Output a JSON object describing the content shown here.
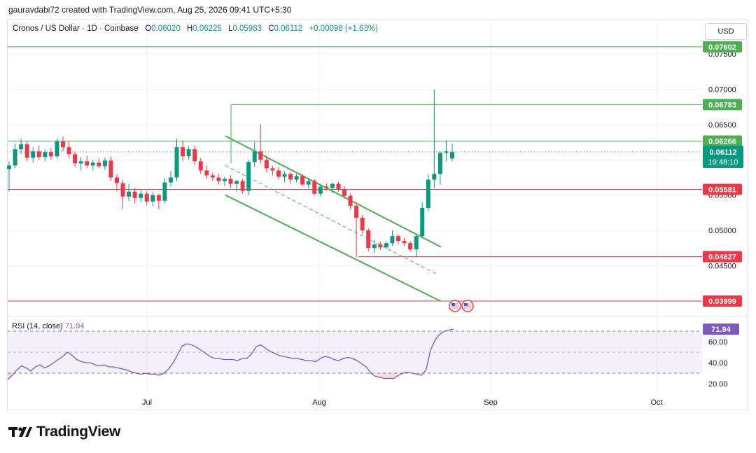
{
  "header": {
    "attribution": "gauravdabi72 created with TradingView.com, Aug 25, 2026 09:41 UTC+5:30"
  },
  "legend": {
    "symbol": "Cronos / US Dollar · 1D · Coinbase",
    "o_label": "O",
    "o_value": "0.06020",
    "h_label": "H",
    "h_value": "0.06225",
    "l_label": "L",
    "l_value": "0.05983",
    "c_label": "C",
    "c_value": "0.06112",
    "change": "+0.00098 (+1.63%)"
  },
  "currency_button": "USD",
  "rsi": {
    "label": "RSI (14, close)",
    "value": "71.94",
    "upper_band": 70,
    "lower_band": 30,
    "ticks": [
      "60.00",
      "40.00",
      "20.00"
    ]
  },
  "colors": {
    "up": "#089981",
    "down": "#f23645",
    "channel": "#4caf50",
    "rsi_line": "#7e57c2",
    "support": "#f23645",
    "resistance": "#4caf50"
  },
  "chart_data": {
    "type": "candlestick",
    "price_axis": {
      "min": 0.038,
      "max": 0.0775,
      "ticks": [
        "0.07500",
        "0.07000",
        "0.06500",
        "0.06000",
        "0.05500",
        "0.05000",
        "0.04500"
      ]
    },
    "time_axis": [
      "Jul",
      "Aug",
      "Sep",
      "Oct"
    ],
    "levels": [
      {
        "value": 0.07602,
        "label": "0.07602",
        "color": "#4caf50"
      },
      {
        "value": 0.06783,
        "label": "0.06783",
        "color": "#4caf50"
      },
      {
        "value": 0.06266,
        "label": "0.06266",
        "color": "#4caf50"
      },
      {
        "value": 0.05581,
        "label": "0.05581",
        "color": "#f23645"
      },
      {
        "value": 0.04627,
        "label": "0.04627",
        "color": "#f23645"
      },
      {
        "value": 0.03999,
        "label": "0.03999",
        "color": "#f23645"
      }
    ],
    "last_price": {
      "value": 0.06112,
      "label": "0.06112",
      "countdown": "19:48:10"
    },
    "candles": [
      {
        "o": 0.0587,
        "h": 0.0598,
        "l": 0.0555,
        "c": 0.0592
      },
      {
        "o": 0.0592,
        "h": 0.0623,
        "l": 0.0588,
        "c": 0.0615
      },
      {
        "o": 0.0615,
        "h": 0.063,
        "l": 0.0608,
        "c": 0.0622
      },
      {
        "o": 0.0622,
        "h": 0.0626,
        "l": 0.0598,
        "c": 0.0603
      },
      {
        "o": 0.0603,
        "h": 0.0618,
        "l": 0.0596,
        "c": 0.0612
      },
      {
        "o": 0.0612,
        "h": 0.062,
        "l": 0.06,
        "c": 0.0604
      },
      {
        "o": 0.0604,
        "h": 0.0615,
        "l": 0.0598,
        "c": 0.0611
      },
      {
        "o": 0.0611,
        "h": 0.0617,
        "l": 0.06,
        "c": 0.0605
      },
      {
        "o": 0.0605,
        "h": 0.063,
        "l": 0.0602,
        "c": 0.0626
      },
      {
        "o": 0.0626,
        "h": 0.0633,
        "l": 0.0612,
        "c": 0.0618
      },
      {
        "o": 0.0618,
        "h": 0.0626,
        "l": 0.0602,
        "c": 0.0608
      },
      {
        "o": 0.0608,
        "h": 0.0612,
        "l": 0.059,
        "c": 0.0595
      },
      {
        "o": 0.0595,
        "h": 0.0604,
        "l": 0.0585,
        "c": 0.0598
      },
      {
        "o": 0.0598,
        "h": 0.0606,
        "l": 0.0588,
        "c": 0.0592
      },
      {
        "o": 0.0592,
        "h": 0.06,
        "l": 0.0585,
        "c": 0.0596
      },
      {
        "o": 0.0596,
        "h": 0.0602,
        "l": 0.0588,
        "c": 0.0591
      },
      {
        "o": 0.0591,
        "h": 0.0603,
        "l": 0.0586,
        "c": 0.0599
      },
      {
        "o": 0.0599,
        "h": 0.0605,
        "l": 0.057,
        "c": 0.0575
      },
      {
        "o": 0.0575,
        "h": 0.058,
        "l": 0.0555,
        "c": 0.0567
      },
      {
        "o": 0.0567,
        "h": 0.0572,
        "l": 0.053,
        "c": 0.0548
      },
      {
        "o": 0.0548,
        "h": 0.0566,
        "l": 0.0542,
        "c": 0.0555
      },
      {
        "o": 0.0555,
        "h": 0.056,
        "l": 0.0538,
        "c": 0.0546
      },
      {
        "o": 0.0546,
        "h": 0.0558,
        "l": 0.054,
        "c": 0.0552
      },
      {
        "o": 0.0552,
        "h": 0.0556,
        "l": 0.0536,
        "c": 0.0541
      },
      {
        "o": 0.0541,
        "h": 0.0555,
        "l": 0.0534,
        "c": 0.055
      },
      {
        "o": 0.055,
        "h": 0.0552,
        "l": 0.053,
        "c": 0.0542
      },
      {
        "o": 0.0542,
        "h": 0.0574,
        "l": 0.0538,
        "c": 0.0568
      },
      {
        "o": 0.0568,
        "h": 0.0584,
        "l": 0.0562,
        "c": 0.0575
      },
      {
        "o": 0.0575,
        "h": 0.063,
        "l": 0.057,
        "c": 0.0618
      },
      {
        "o": 0.0618,
        "h": 0.0627,
        "l": 0.0598,
        "c": 0.0605
      },
      {
        "o": 0.0605,
        "h": 0.062,
        "l": 0.06,
        "c": 0.0615
      },
      {
        "o": 0.0615,
        "h": 0.062,
        "l": 0.0592,
        "c": 0.0598
      },
      {
        "o": 0.0598,
        "h": 0.0603,
        "l": 0.058,
        "c": 0.0585
      },
      {
        "o": 0.0585,
        "h": 0.0592,
        "l": 0.0573,
        "c": 0.0578
      },
      {
        "o": 0.0578,
        "h": 0.0582,
        "l": 0.057,
        "c": 0.0575
      },
      {
        "o": 0.0575,
        "h": 0.058,
        "l": 0.0565,
        "c": 0.057
      },
      {
        "o": 0.057,
        "h": 0.0576,
        "l": 0.0563,
        "c": 0.0573
      },
      {
        "o": 0.0573,
        "h": 0.0578,
        "l": 0.056,
        "c": 0.0566
      },
      {
        "o": 0.0566,
        "h": 0.0572,
        "l": 0.0555,
        "c": 0.057
      },
      {
        "o": 0.057,
        "h": 0.0573,
        "l": 0.0552,
        "c": 0.0556
      },
      {
        "o": 0.0556,
        "h": 0.06,
        "l": 0.055,
        "c": 0.0597
      },
      {
        "o": 0.0597,
        "h": 0.0625,
        "l": 0.059,
        "c": 0.0612
      },
      {
        "o": 0.0612,
        "h": 0.065,
        "l": 0.0595,
        "c": 0.06
      },
      {
        "o": 0.06,
        "h": 0.0606,
        "l": 0.0582,
        "c": 0.0588
      },
      {
        "o": 0.0588,
        "h": 0.0592,
        "l": 0.0578,
        "c": 0.0585
      },
      {
        "o": 0.0585,
        "h": 0.059,
        "l": 0.0572,
        "c": 0.0576
      },
      {
        "o": 0.0576,
        "h": 0.0584,
        "l": 0.0568,
        "c": 0.058
      },
      {
        "o": 0.058,
        "h": 0.0583,
        "l": 0.0566,
        "c": 0.0572
      },
      {
        "o": 0.0572,
        "h": 0.058,
        "l": 0.0568,
        "c": 0.0577
      },
      {
        "o": 0.0577,
        "h": 0.058,
        "l": 0.0562,
        "c": 0.0565
      },
      {
        "o": 0.0565,
        "h": 0.0574,
        "l": 0.056,
        "c": 0.057
      },
      {
        "o": 0.057,
        "h": 0.0573,
        "l": 0.055,
        "c": 0.0552
      },
      {
        "o": 0.0552,
        "h": 0.0566,
        "l": 0.0548,
        "c": 0.0562
      },
      {
        "o": 0.0562,
        "h": 0.0567,
        "l": 0.0556,
        "c": 0.056
      },
      {
        "o": 0.056,
        "h": 0.0568,
        "l": 0.0553,
        "c": 0.0566
      },
      {
        "o": 0.0566,
        "h": 0.0569,
        "l": 0.0555,
        "c": 0.0558
      },
      {
        "o": 0.0558,
        "h": 0.0563,
        "l": 0.0545,
        "c": 0.0549
      },
      {
        "o": 0.0549,
        "h": 0.0552,
        "l": 0.053,
        "c": 0.0535
      },
      {
        "o": 0.0535,
        "h": 0.054,
        "l": 0.0462,
        "c": 0.0518
      },
      {
        "o": 0.0518,
        "h": 0.0522,
        "l": 0.0495,
        "c": 0.05
      },
      {
        "o": 0.05,
        "h": 0.0503,
        "l": 0.047,
        "c": 0.0475
      },
      {
        "o": 0.0475,
        "h": 0.0486,
        "l": 0.0468,
        "c": 0.048
      },
      {
        "o": 0.048,
        "h": 0.0484,
        "l": 0.0472,
        "c": 0.0476
      },
      {
        "o": 0.0476,
        "h": 0.0485,
        "l": 0.0474,
        "c": 0.0482
      },
      {
        "o": 0.0482,
        "h": 0.05,
        "l": 0.0478,
        "c": 0.0492
      },
      {
        "o": 0.0492,
        "h": 0.0494,
        "l": 0.048,
        "c": 0.0485
      },
      {
        "o": 0.0485,
        "h": 0.049,
        "l": 0.0478,
        "c": 0.0482
      },
      {
        "o": 0.0482,
        "h": 0.0485,
        "l": 0.047,
        "c": 0.0473
      },
      {
        "o": 0.0473,
        "h": 0.0495,
        "l": 0.0462,
        "c": 0.0492
      },
      {
        "o": 0.0492,
        "h": 0.054,
        "l": 0.049,
        "c": 0.0532
      },
      {
        "o": 0.0532,
        "h": 0.058,
        "l": 0.0528,
        "c": 0.0572
      },
      {
        "o": 0.0572,
        "h": 0.07,
        "l": 0.056,
        "c": 0.058
      },
      {
        "o": 0.058,
        "h": 0.0612,
        "l": 0.0565,
        "c": 0.061
      },
      {
        "o": 0.061,
        "h": 0.0628,
        "l": 0.0598,
        "c": 0.0612
      },
      {
        "o": 0.0602,
        "h": 0.0623,
        "l": 0.0598,
        "c": 0.0611
      }
    ],
    "rsi_values": [
      24,
      28,
      33,
      37,
      35,
      32,
      36,
      38,
      35,
      37,
      40,
      43,
      46,
      50,
      47,
      43,
      41,
      40,
      40,
      38,
      37,
      38,
      36,
      36,
      35,
      34,
      33,
      31,
      30,
      29,
      30,
      29,
      29,
      28,
      30,
      34,
      40,
      48,
      56,
      58,
      57,
      55,
      52,
      49,
      46,
      44,
      44,
      43,
      43,
      43,
      42,
      44,
      44,
      48,
      55,
      57,
      54,
      51,
      49,
      47,
      46,
      45,
      44,
      44,
      43,
      42,
      42,
      41,
      44,
      46,
      45,
      43,
      42,
      44,
      45,
      44,
      42,
      39,
      36,
      30,
      27,
      26,
      25,
      25,
      25,
      28,
      30,
      31,
      30,
      29,
      28,
      33,
      52,
      62,
      67,
      70,
      71,
      72
    ]
  },
  "footer": {
    "brand": "TradingView"
  }
}
